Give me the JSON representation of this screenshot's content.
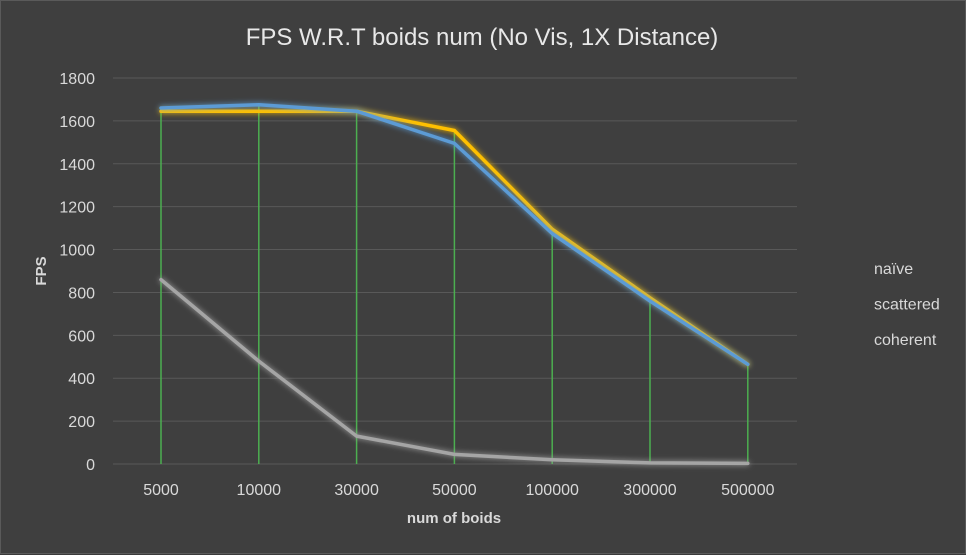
{
  "chart_data": {
    "type": "line",
    "title": "FPS W.R.T boids num (No Vis, 1X Distance)",
    "xlabel": "num of boids",
    "ylabel": "FPS",
    "categories": [
      "5000",
      "10000",
      "30000",
      "50000",
      "100000",
      "300000",
      "500000"
    ],
    "ylim": [
      0,
      1800
    ],
    "yticks": [
      0,
      200,
      400,
      600,
      800,
      1000,
      1200,
      1400,
      1600,
      1800
    ],
    "grid": true,
    "drop_lines": true,
    "legend_position": "right",
    "series": [
      {
        "name": "naïve",
        "color": "#a5a5a5",
        "values": [
          860,
          480,
          130,
          45,
          20,
          5,
          3
        ]
      },
      {
        "name": "scattered",
        "color": "#ffc000",
        "values": [
          1645,
          1645,
          1645,
          1555,
          1095,
          775,
          465
        ]
      },
      {
        "name": "coherent",
        "color": "#5b9bd5",
        "values": [
          1660,
          1675,
          1645,
          1495,
          1075,
          760,
          465
        ]
      }
    ],
    "colors": {
      "background": "#3f3f3f",
      "gridline": "#595959",
      "drop_line": "#4caf50",
      "text": "#d9d9d9"
    }
  }
}
